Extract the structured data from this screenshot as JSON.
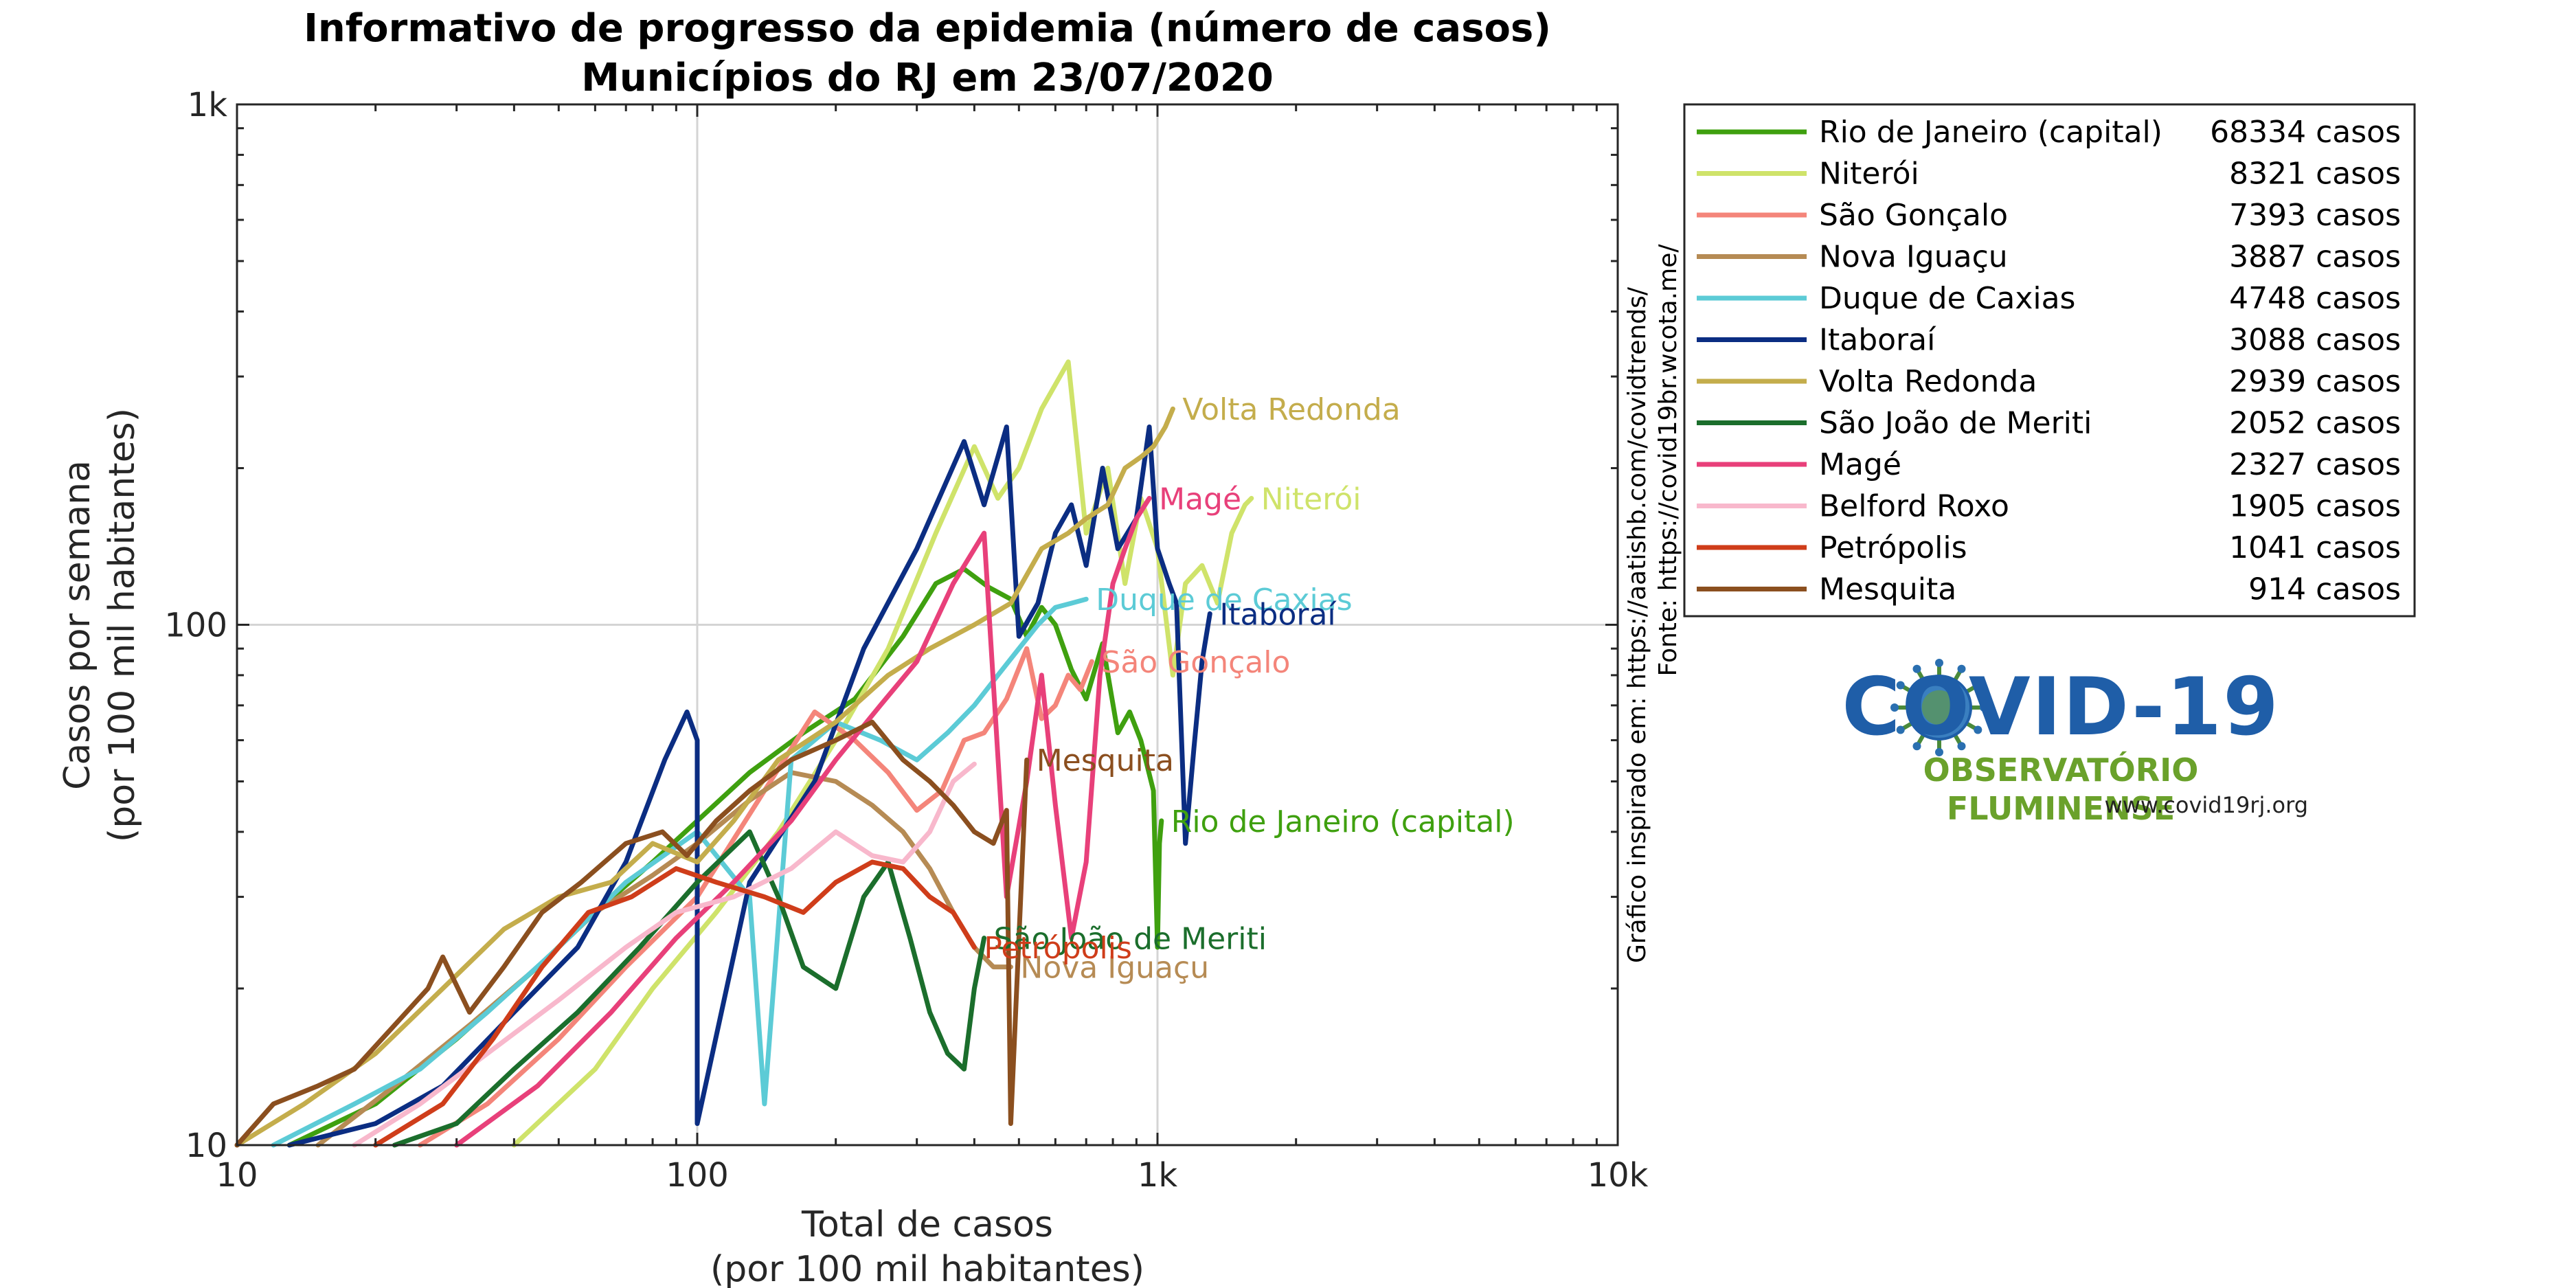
{
  "title_line1": "Informativo de progresso da epidemia (número de casos)",
  "title_line2": "Municípios do RJ em 23/07/2020",
  "ylabel_line1": "Casos por semana",
  "ylabel_line2": "(por 100 mil habitantes)",
  "xlabel_line1": "Total de casos",
  "xlabel_line2": "(por 100 mil habitantes)",
  "source_line1": "Gráfico inspirado em: https://aatishb.com/covidtrends/",
  "source_line2": "Fonte: https://covid19br.wcota.me/",
  "logo": {
    "title": "COVID-19",
    "subtitle": "OBSERVATÓRIO FLUMINENSE",
    "url": "www.covid19rj.org"
  },
  "chart_data": {
    "type": "line",
    "xscale": "log",
    "yscale": "log",
    "xlim": [
      10,
      10000
    ],
    "ylim": [
      10,
      1000
    ],
    "xticks": [
      10,
      100,
      1000,
      10000
    ],
    "xtick_labels": [
      "10",
      "100",
      "1k",
      "10k"
    ],
    "yticks": [
      10,
      100,
      1000
    ],
    "ytick_labels": [
      "10",
      "100",
      "1k"
    ],
    "grid": true,
    "legend_position": "right",
    "series": [
      {
        "name": "Rio de Janeiro (capital)",
        "cases_label": "68334 casos",
        "color": "#3fa00f",
        "end_label": "Rio de Janeiro (capital)",
        "points": [
          [
            13,
            10
          ],
          [
            20,
            12
          ],
          [
            30,
            16
          ],
          [
            45,
            22
          ],
          [
            60,
            28
          ],
          [
            80,
            35
          ],
          [
            100,
            42
          ],
          [
            130,
            52
          ],
          [
            170,
            62
          ],
          [
            220,
            72
          ],
          [
            280,
            95
          ],
          [
            330,
            120
          ],
          [
            380,
            128
          ],
          [
            430,
            118
          ],
          [
            480,
            112
          ],
          [
            520,
            95
          ],
          [
            560,
            108
          ],
          [
            600,
            100
          ],
          [
            650,
            82
          ],
          [
            700,
            72
          ],
          [
            760,
            92
          ],
          [
            820,
            62
          ],
          [
            870,
            68
          ],
          [
            920,
            60
          ],
          [
            980,
            48
          ],
          [
            1000,
            24
          ],
          [
            1010,
            38
          ],
          [
            1020,
            42
          ]
        ]
      },
      {
        "name": "Niterói",
        "cases_label": "8321 casos",
        "color": "#cfe36a",
        "end_label": "Niterói",
        "points": [
          [
            40,
            10
          ],
          [
            60,
            14
          ],
          [
            80,
            20
          ],
          [
            110,
            28
          ],
          [
            150,
            40
          ],
          [
            200,
            60
          ],
          [
            260,
            90
          ],
          [
            330,
            150
          ],
          [
            400,
            220
          ],
          [
            450,
            175
          ],
          [
            500,
            200
          ],
          [
            560,
            260
          ],
          [
            640,
            320
          ],
          [
            700,
            150
          ],
          [
            780,
            200
          ],
          [
            850,
            120
          ],
          [
            920,
            175
          ],
          [
            1000,
            140
          ],
          [
            1080,
            80
          ],
          [
            1150,
            120
          ],
          [
            1250,
            130
          ],
          [
            1350,
            110
          ],
          [
            1450,
            150
          ],
          [
            1550,
            170
          ],
          [
            1600,
            175
          ]
        ]
      },
      {
        "name": "São Gonçalo",
        "cases_label": "7393 casos",
        "color": "#f4857a",
        "end_label": "São Gonçalo",
        "points": [
          [
            25,
            10
          ],
          [
            35,
            12
          ],
          [
            50,
            16
          ],
          [
            70,
            22
          ],
          [
            100,
            30
          ],
          [
            140,
            48
          ],
          [
            180,
            68
          ],
          [
            220,
            60
          ],
          [
            260,
            52
          ],
          [
            300,
            44
          ],
          [
            340,
            48
          ],
          [
            380,
            60
          ],
          [
            420,
            62
          ],
          [
            470,
            72
          ],
          [
            520,
            90
          ],
          [
            560,
            66
          ],
          [
            600,
            70
          ],
          [
            640,
            80
          ],
          [
            680,
            75
          ],
          [
            720,
            85
          ]
        ]
      },
      {
        "name": "Nova Iguaçu",
        "cases_label": "3887 casos",
        "color": "#b68b54",
        "end_label": "Nova Iguaçu",
        "points": [
          [
            15,
            10
          ],
          [
            22,
            13
          ],
          [
            32,
            17
          ],
          [
            45,
            22
          ],
          [
            60,
            28
          ],
          [
            80,
            33
          ],
          [
            100,
            38
          ],
          [
            130,
            46
          ],
          [
            160,
            52
          ],
          [
            200,
            50
          ],
          [
            240,
            45
          ],
          [
            280,
            40
          ],
          [
            320,
            34
          ],
          [
            360,
            28
          ],
          [
            400,
            24
          ],
          [
            440,
            22
          ],
          [
            480,
            22
          ]
        ]
      },
      {
        "name": "Duque de Caxias",
        "cases_label": "4748 casos",
        "color": "#5ccbd6",
        "end_label": "Duque de Caxias",
        "points": [
          [
            12,
            10
          ],
          [
            18,
            12
          ],
          [
            25,
            14
          ],
          [
            35,
            18
          ],
          [
            50,
            24
          ],
          [
            70,
            32
          ],
          [
            100,
            40
          ],
          [
            130,
            30
          ],
          [
            140,
            12
          ],
          [
            160,
            55
          ],
          [
            200,
            65
          ],
          [
            250,
            60
          ],
          [
            300,
            55
          ],
          [
            350,
            62
          ],
          [
            400,
            70
          ],
          [
            450,
            80
          ],
          [
            500,
            90
          ],
          [
            550,
            100
          ],
          [
            600,
            108
          ],
          [
            650,
            110
          ],
          [
            700,
            112
          ]
        ]
      },
      {
        "name": "Itaboraí",
        "cases_label": "3088 casos",
        "color": "#0b2d82",
        "end_label": "Itaboraí",
        "points": [
          [
            13,
            10
          ],
          [
            20,
            11
          ],
          [
            28,
            13
          ],
          [
            40,
            18
          ],
          [
            55,
            24
          ],
          [
            70,
            35
          ],
          [
            85,
            55
          ],
          [
            95,
            68
          ],
          [
            100,
            60
          ],
          [
            100,
            11
          ],
          [
            130,
            32
          ],
          [
            180,
            50
          ],
          [
            230,
            90
          ],
          [
            300,
            140
          ],
          [
            380,
            225
          ],
          [
            420,
            170
          ],
          [
            470,
            240
          ],
          [
            500,
            95
          ],
          [
            550,
            110
          ],
          [
            600,
            150
          ],
          [
            650,
            170
          ],
          [
            700,
            130
          ],
          [
            760,
            200
          ],
          [
            820,
            140
          ],
          [
            900,
            160
          ],
          [
            960,
            240
          ],
          [
            1000,
            140
          ],
          [
            1060,
            120
          ],
          [
            1100,
            110
          ],
          [
            1150,
            38
          ],
          [
            1200,
            58
          ],
          [
            1250,
            85
          ],
          [
            1300,
            105
          ]
        ]
      },
      {
        "name": "Volta Redonda",
        "cases_label": "2939 casos",
        "color": "#c4ad4c",
        "end_label": "Volta Redonda",
        "points": [
          [
            10,
            10
          ],
          [
            14,
            12
          ],
          [
            20,
            15
          ],
          [
            28,
            20
          ],
          [
            38,
            26
          ],
          [
            50,
            30
          ],
          [
            65,
            32
          ],
          [
            80,
            38
          ],
          [
            100,
            35
          ],
          [
            120,
            42
          ],
          [
            150,
            55
          ],
          [
            200,
            65
          ],
          [
            260,
            80
          ],
          [
            320,
            90
          ],
          [
            400,
            100
          ],
          [
            480,
            110
          ],
          [
            560,
            140
          ],
          [
            640,
            150
          ],
          [
            700,
            160
          ],
          [
            780,
            170
          ],
          [
            850,
            200
          ],
          [
            920,
            210
          ],
          [
            980,
            220
          ],
          [
            1040,
            240
          ],
          [
            1080,
            260
          ]
        ]
      },
      {
        "name": "São João de Meriti",
        "cases_label": "2052 casos",
        "color": "#1b6e2c",
        "end_label": "São João de Meriti",
        "points": [
          [
            22,
            10
          ],
          [
            30,
            11
          ],
          [
            40,
            14
          ],
          [
            55,
            18
          ],
          [
            75,
            24
          ],
          [
            100,
            32
          ],
          [
            130,
            40
          ],
          [
            150,
            30
          ],
          [
            170,
            22
          ],
          [
            200,
            20
          ],
          [
            230,
            30
          ],
          [
            260,
            35
          ],
          [
            290,
            25
          ],
          [
            320,
            18
          ],
          [
            350,
            15
          ],
          [
            380,
            14
          ],
          [
            400,
            20
          ],
          [
            420,
            25
          ]
        ]
      },
      {
        "name": "Magé",
        "cases_label": "2327 casos",
        "color": "#e8407a",
        "end_label": "Magé",
        "points": [
          [
            30,
            10
          ],
          [
            45,
            13
          ],
          [
            65,
            18
          ],
          [
            90,
            25
          ],
          [
            120,
            32
          ],
          [
            160,
            42
          ],
          [
            200,
            55
          ],
          [
            250,
            70
          ],
          [
            300,
            85
          ],
          [
            360,
            120
          ],
          [
            420,
            150
          ],
          [
            470,
            30
          ],
          [
            520,
            50
          ],
          [
            560,
            80
          ],
          [
            600,
            45
          ],
          [
            650,
            25
          ],
          [
            700,
            35
          ],
          [
            750,
            80
          ],
          [
            800,
            120
          ],
          [
            850,
            140
          ],
          [
            900,
            160
          ],
          [
            960,
            175
          ]
        ]
      },
      {
        "name": "Belford Roxo",
        "cases_label": "1905 casos",
        "color": "#f8b8cc",
        "end_label": "",
        "points": [
          [
            18,
            10
          ],
          [
            25,
            12
          ],
          [
            35,
            15
          ],
          [
            50,
            19
          ],
          [
            70,
            24
          ],
          [
            90,
            28
          ],
          [
            120,
            30
          ],
          [
            160,
            34
          ],
          [
            200,
            40
          ],
          [
            240,
            36
          ],
          [
            280,
            35
          ],
          [
            320,
            40
          ],
          [
            360,
            50
          ],
          [
            400,
            54
          ]
        ]
      },
      {
        "name": "Petrópolis",
        "cases_label": "1041 casos",
        "color": "#cf3d1a",
        "end_label": "Petrópolis",
        "points": [
          [
            20,
            10
          ],
          [
            28,
            12
          ],
          [
            36,
            16
          ],
          [
            46,
            22
          ],
          [
            58,
            28
          ],
          [
            72,
            30
          ],
          [
            90,
            34
          ],
          [
            110,
            32
          ],
          [
            140,
            30
          ],
          [
            170,
            28
          ],
          [
            200,
            32
          ],
          [
            240,
            35
          ],
          [
            280,
            34
          ],
          [
            320,
            30
          ],
          [
            360,
            28
          ],
          [
            400,
            24
          ]
        ]
      },
      {
        "name": "Mesquita",
        "cases_label": "914 casos",
        "color": "#8b4f1f",
        "end_label": "Mesquita",
        "points": [
          [
            10,
            10
          ],
          [
            12,
            12
          ],
          [
            15,
            13
          ],
          [
            18,
            14
          ],
          [
            22,
            17
          ],
          [
            26,
            20
          ],
          [
            28,
            23
          ],
          [
            32,
            18
          ],
          [
            38,
            22
          ],
          [
            46,
            28
          ],
          [
            56,
            32
          ],
          [
            70,
            38
          ],
          [
            84,
            40
          ],
          [
            95,
            36
          ],
          [
            110,
            42
          ],
          [
            130,
            48
          ],
          [
            160,
            55
          ],
          [
            200,
            60
          ],
          [
            240,
            65
          ],
          [
            280,
            55
          ],
          [
            320,
            50
          ],
          [
            360,
            45
          ],
          [
            400,
            40
          ],
          [
            440,
            38
          ],
          [
            470,
            44
          ],
          [
            480,
            11
          ],
          [
            520,
            55
          ]
        ]
      }
    ]
  }
}
